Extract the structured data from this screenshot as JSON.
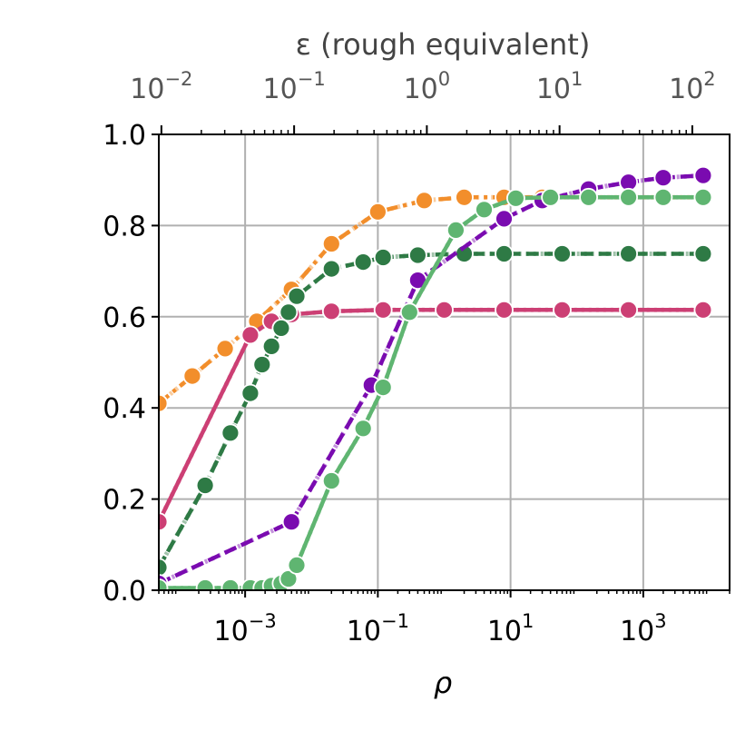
{
  "chart_data": {
    "type": "line",
    "xlabel": "ρ",
    "ylabel": "",
    "top_xlabel": "ε (rough equivalent)",
    "x_scale": "log",
    "xlim": [
      5e-05,
      20000
    ],
    "ylim": [
      0.0,
      1.0
    ],
    "grid": true,
    "x_ticks": [
      {
        "value": 0.001,
        "base": "10",
        "exp": "−3"
      },
      {
        "value": 0.1,
        "base": "10",
        "exp": "−1"
      },
      {
        "value": 10,
        "base": "10",
        "exp": "1"
      },
      {
        "value": 1000,
        "base": "10",
        "exp": "3"
      }
    ],
    "y_ticks": [
      {
        "value": 0.0,
        "label": "0.0"
      },
      {
        "value": 0.2,
        "label": "0.2"
      },
      {
        "value": 0.4,
        "label": "0.4"
      },
      {
        "value": 0.6,
        "label": "0.6"
      },
      {
        "value": 0.8,
        "label": "0.8"
      },
      {
        "value": 1.0,
        "label": "1.0"
      }
    ],
    "top_axis": {
      "scale": "log",
      "xlim": [
        0.00956,
        191
      ],
      "ticks": [
        {
          "value": 0.01,
          "base": "10",
          "exp": "−2"
        },
        {
          "value": 0.1,
          "base": "10",
          "exp": "−1"
        },
        {
          "value": 1,
          "base": "10",
          "exp": "0"
        },
        {
          "value": 10,
          "base": "10",
          "exp": "1"
        },
        {
          "value": 100,
          "base": "10",
          "exp": "2"
        }
      ]
    },
    "series": [
      {
        "color": "#F28E2B",
        "dash": "14,6,4,6",
        "x": [
          5e-05,
          0.00016,
          0.0005,
          0.0015,
          0.005,
          0.02,
          0.1,
          0.5,
          2,
          8,
          30,
          150,
          600,
          8000
        ],
        "y": [
          0.41,
          0.47,
          0.53,
          0.59,
          0.66,
          0.76,
          0.83,
          0.855,
          0.862,
          0.862,
          0.862,
          0.862,
          0.862,
          0.862
        ]
      },
      {
        "color": "#CC3F74",
        "dash": "",
        "x": [
          5e-05,
          0.0012,
          0.0025,
          0.005,
          0.02,
          0.12,
          1,
          8,
          60,
          600,
          8000
        ],
        "y": [
          0.15,
          0.56,
          0.59,
          0.605,
          0.612,
          0.615,
          0.615,
          0.615,
          0.615,
          0.615,
          0.615
        ]
      },
      {
        "color": "#2E7A45",
        "dash": "14,6",
        "x": [
          5e-05,
          0.00025,
          0.0006,
          0.0012,
          0.0018,
          0.0025,
          0.0035,
          0.0045,
          0.006,
          0.02,
          0.06,
          0.12,
          0.4,
          2,
          8,
          60,
          600,
          8000
        ],
        "y": [
          0.05,
          0.23,
          0.345,
          0.432,
          0.495,
          0.535,
          0.575,
          0.61,
          0.645,
          0.705,
          0.72,
          0.73,
          0.735,
          0.738,
          0.738,
          0.738,
          0.738,
          0.738
        ]
      },
      {
        "color": "#7A0BB0",
        "dash": "14,6",
        "x": [
          5e-05,
          0.005,
          0.08,
          0.4,
          8,
          30,
          150,
          600,
          2000,
          8000
        ],
        "y": [
          0.015,
          0.15,
          0.45,
          0.68,
          0.815,
          0.855,
          0.88,
          0.895,
          0.905,
          0.91
        ]
      },
      {
        "color": "#5FB571",
        "dash": "",
        "x": [
          5e-05,
          0.00025,
          0.0006,
          0.0012,
          0.0018,
          0.0025,
          0.0035,
          0.0045,
          0.006,
          0.02,
          0.06,
          0.12,
          0.3,
          1.5,
          4,
          12,
          40,
          150,
          600,
          2000,
          8000
        ],
        "y": [
          0.005,
          0.005,
          0.005,
          0.005,
          0.005,
          0.01,
          0.015,
          0.025,
          0.055,
          0.24,
          0.355,
          0.445,
          0.61,
          0.79,
          0.835,
          0.86,
          0.862,
          0.862,
          0.862,
          0.862,
          0.862
        ]
      }
    ]
  }
}
